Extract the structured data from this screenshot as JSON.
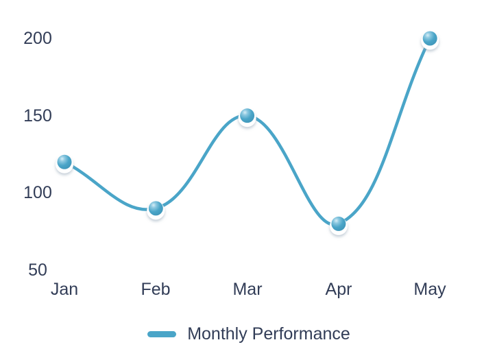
{
  "chart_data": {
    "type": "line",
    "categories": [
      "Jan",
      "Feb",
      "Mar",
      "Apr",
      "May"
    ],
    "series": [
      {
        "name": "Monthly Performance",
        "values": [
          120,
          90,
          150,
          80,
          200
        ]
      }
    ],
    "title": "",
    "xlabel": "",
    "ylabel": "",
    "ylim": [
      50,
      200
    ],
    "yticks": [
      200,
      150,
      100,
      50
    ],
    "ytick_labels": [
      "200",
      "150",
      "100",
      "50"
    ],
    "grid": false,
    "axes_lines": false,
    "legend_position": "bottom",
    "curve": "smooth",
    "marker_style": "glossy-sphere",
    "colors": {
      "line": "#4AA5C8",
      "marker_body": "#4AA5C8",
      "marker_highlight": "#D6EEF7",
      "marker_ring": "#FFFFFF",
      "marker_shadow": "#8FA1B3",
      "text": "#323D57",
      "background": "#FFFFFF"
    }
  }
}
